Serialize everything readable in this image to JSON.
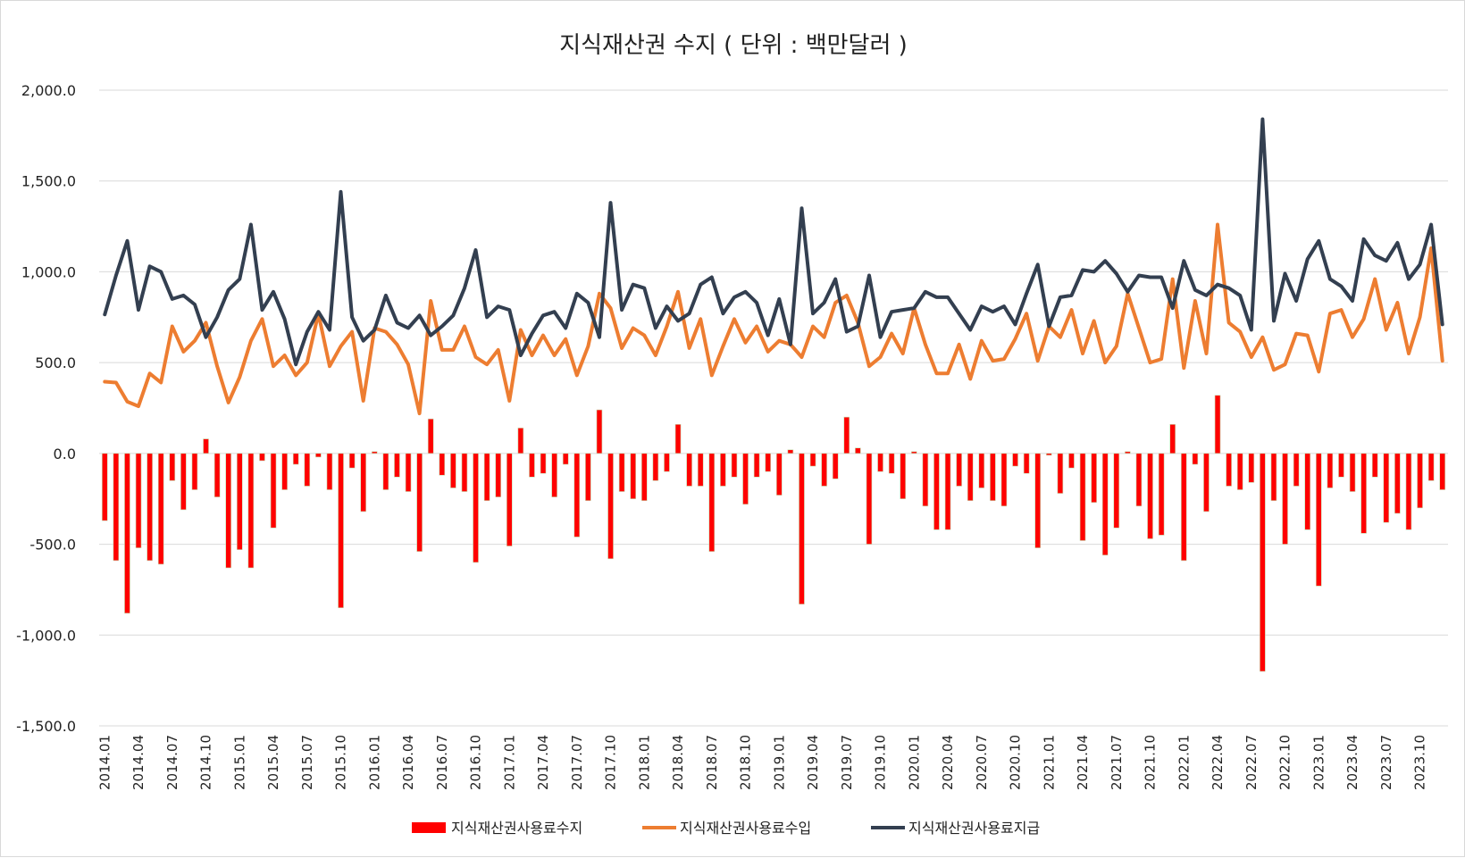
{
  "chart_data": {
    "type": "bar+line",
    "title": "지식재산권 수지 ( 단위 : 백만달러 )",
    "ylim": [
      -1500,
      2000
    ],
    "yticks": [
      -1500,
      -1000,
      -500,
      0,
      500,
      1000,
      1500,
      2000
    ],
    "ytick_labels": [
      "-1,500.0",
      "-1,000.0",
      "-500.0",
      "0.0",
      "500.0",
      "1,000.0",
      "1,500.0",
      "2,000.0"
    ],
    "xtick_labels": [
      "2014.01",
      "2014.04",
      "2014.07",
      "2014.10",
      "2015.01",
      "2015.04",
      "2015.07",
      "2015.10",
      "2016.01",
      "2016.04",
      "2016.07",
      "2016.10",
      "2017.01",
      "2017.04",
      "2017.07",
      "2017.10",
      "2018.01",
      "2018.04",
      "2018.07",
      "2018.10",
      "2019.01",
      "2019.04",
      "2019.07",
      "2019.10",
      "2020.01",
      "2020.04",
      "2020.07",
      "2020.10",
      "2021.01",
      "2021.04",
      "2021.07",
      "2021.10",
      "2022.01",
      "2022.04",
      "2022.07",
      "2022.10",
      "2023.01",
      "2023.04",
      "2023.07",
      "2023.10"
    ],
    "colors": {
      "balance": "#ff0000",
      "receipts": "#ed7d31",
      "payments": "#333f50",
      "grid": "#d9d9d9"
    },
    "series": [
      {
        "name": "지식재산권사용료수지",
        "kind": "bar",
        "values": [
          -370,
          -590,
          -880,
          -520,
          -590,
          -610,
          -150,
          -310,
          -200,
          80,
          -240,
          -630,
          -530,
          -630,
          -40,
          -410,
          -200,
          -60,
          -180,
          -20,
          -200,
          -850,
          -80,
          -320,
          10,
          -200,
          -130,
          -210,
          -540,
          190,
          -120,
          -190,
          -210,
          -600,
          -260,
          -240,
          -510,
          140,
          -130,
          -110,
          -240,
          -60,
          -460,
          -260,
          240,
          -580,
          -210,
          -250,
          -260,
          -150,
          -100,
          160,
          -180,
          -180,
          -540,
          -180,
          -130,
          -280,
          -130,
          -100,
          -230,
          20,
          -830,
          -70,
          -180,
          -140,
          200,
          30,
          -500,
          -100,
          -110,
          -250,
          10,
          -290,
          -420,
          -420,
          -180,
          -260,
          -190,
          -260,
          -290,
          -70,
          -110,
          -520,
          -10,
          -220,
          -80,
          -480,
          -270,
          -560,
          -410,
          10,
          -290,
          -470,
          -450,
          160,
          -590,
          -60,
          -320,
          320,
          -180,
          -200,
          -160,
          -1200,
          -260,
          -500,
          -180,
          -420,
          -730,
          -190,
          -130,
          -210,
          -440,
          -130,
          -380,
          -330,
          -420,
          -300,
          -150,
          -200
        ]
      },
      {
        "name": "지식재산권사용료수입",
        "kind": "line",
        "values": [
          395,
          390,
          285,
          260,
          440,
          390,
          700,
          560,
          620,
          720,
          480,
          280,
          420,
          620,
          740,
          480,
          540,
          430,
          500,
          770,
          480,
          590,
          670,
          290,
          690,
          670,
          600,
          490,
          220,
          840,
          570,
          570,
          700,
          530,
          490,
          570,
          290,
          680,
          540,
          650,
          540,
          630,
          430,
          590,
          880,
          800,
          580,
          690,
          650,
          540,
          700,
          890,
          580,
          740,
          430,
          590,
          740,
          610,
          700,
          560,
          620,
          600,
          530,
          700,
          640,
          830,
          870,
          720,
          480,
          530,
          660,
          550,
          800,
          600,
          440,
          440,
          600,
          410,
          620,
          510,
          520,
          630,
          770,
          510,
          700,
          640,
          790,
          550,
          730,
          500,
          590,
          880,
          690,
          500,
          520,
          960,
          470,
          840,
          550,
          1260,
          720,
          670,
          530,
          640,
          460,
          490,
          660,
          650,
          450,
          770,
          790,
          640,
          740,
          960,
          680,
          830,
          550,
          750,
          1130,
          510
        ]
      },
      {
        "name": "지식재산권사용료지급",
        "kind": "line",
        "values": [
          765,
          980,
          1170,
          790,
          1030,
          1000,
          850,
          870,
          820,
          640,
          750,
          900,
          960,
          1260,
          790,
          890,
          740,
          490,
          670,
          780,
          680,
          1440,
          750,
          620,
          680,
          870,
          720,
          690,
          760,
          650,
          700,
          760,
          910,
          1120,
          750,
          810,
          790,
          540,
          660,
          760,
          780,
          690,
          880,
          830,
          640,
          1380,
          790,
          930,
          910,
          690,
          810,
          730,
          770,
          930,
          970,
          770,
          860,
          890,
          830,
          650,
          850,
          600,
          1350,
          770,
          830,
          960,
          670,
          700,
          980,
          640,
          780,
          790,
          800,
          890,
          860,
          860,
          770,
          680,
          810,
          780,
          810,
          710,
          880,
          1040,
          700,
          860,
          870,
          1010,
          1000,
          1060,
          990,
          890,
          980,
          970,
          970,
          800,
          1060,
          900,
          870,
          930,
          910,
          870,
          680,
          1840,
          730,
          990,
          840,
          1070,
          1170,
          960,
          920,
          840,
          1180,
          1090,
          1060,
          1160,
          960,
          1040,
          1260,
          710
        ]
      }
    ]
  }
}
